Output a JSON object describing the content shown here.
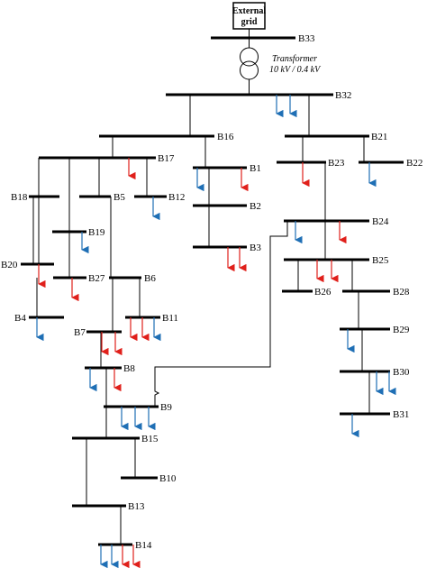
{
  "external_grid_label_1": "External",
  "external_grid_label_2": "grid",
  "transformer": {
    "title": "Transformer",
    "rating": "10 kV / 0.4 kV"
  },
  "colors": {
    "line": "#000000",
    "load_blue": "#1f6fb5",
    "load_red": "#e0201b"
  },
  "bus_labels": {
    "B1": "B1",
    "B2": "B2",
    "B3": "B3",
    "B4": "B4",
    "B5": "B5",
    "B6": "B6",
    "B7": "B7",
    "B8": "B8",
    "B9": "B9",
    "B10": "B10",
    "B11": "B11",
    "B12": "B12",
    "B13": "B13",
    "B14": "B14",
    "B15": "B15",
    "B16": "B16",
    "B17": "B17",
    "B18": "B18",
    "B19": "B19",
    "B20": "B20",
    "B21": "B21",
    "B22": "B22",
    "B23": "B23",
    "B24": "B24",
    "B25": "B25",
    "B26": "B26",
    "B27": "B27",
    "B28": "B28",
    "B29": "B29",
    "B30": "B30",
    "B31": "B31",
    "B32": "B32",
    "B33": "B33"
  }
}
